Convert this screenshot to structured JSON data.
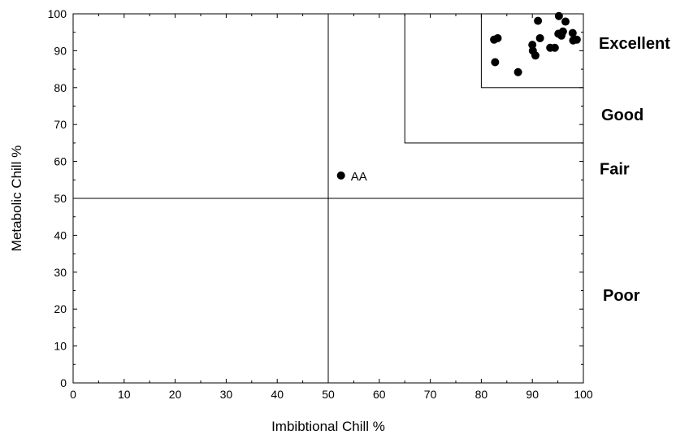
{
  "chart_data": {
    "type": "scatter",
    "title": "",
    "xlabel": "Imbibtional Chill %",
    "ylabel": "Metabolic Chill %",
    "xlim": [
      0,
      100
    ],
    "ylim": [
      0,
      100
    ],
    "xticks": [
      0,
      10,
      20,
      30,
      40,
      50,
      60,
      70,
      80,
      90,
      100
    ],
    "yticks": [
      0,
      10,
      20,
      30,
      40,
      50,
      60,
      70,
      80,
      90,
      100
    ],
    "grid": false,
    "legend": false,
    "marker_color": "#000000",
    "reference_lines": {
      "vertical_at_x": 50,
      "horizontal_at_y": 50
    },
    "quality_zones": [
      {
        "label": "Excellent",
        "x_min": 80,
        "y_min": 80
      },
      {
        "label": "Good",
        "x_min": 65,
        "y_min": 65
      },
      {
        "label": "Fair",
        "y_min": 50
      },
      {
        "label": "Poor",
        "y_max": 50
      }
    ],
    "points": [
      {
        "x": 52.5,
        "y": 56.2,
        "label": "AA"
      },
      {
        "x": 82.5,
        "y": 93.0
      },
      {
        "x": 83.2,
        "y": 93.4
      },
      {
        "x": 82.7,
        "y": 86.9
      },
      {
        "x": 87.2,
        "y": 84.2
      },
      {
        "x": 90.0,
        "y": 91.6
      },
      {
        "x": 90.1,
        "y": 90.0
      },
      {
        "x": 90.6,
        "y": 88.7
      },
      {
        "x": 91.1,
        "y": 98.1
      },
      {
        "x": 91.5,
        "y": 93.4
      },
      {
        "x": 93.5,
        "y": 90.8
      },
      {
        "x": 94.4,
        "y": 90.8
      },
      {
        "x": 95.1,
        "y": 94.6
      },
      {
        "x": 95.2,
        "y": 99.4
      },
      {
        "x": 95.7,
        "y": 94.1
      },
      {
        "x": 96.0,
        "y": 95.2
      },
      {
        "x": 96.5,
        "y": 97.9
      },
      {
        "x": 97.9,
        "y": 94.8
      },
      {
        "x": 98.0,
        "y": 92.8
      },
      {
        "x": 98.7,
        "y": 93.0
      }
    ]
  }
}
